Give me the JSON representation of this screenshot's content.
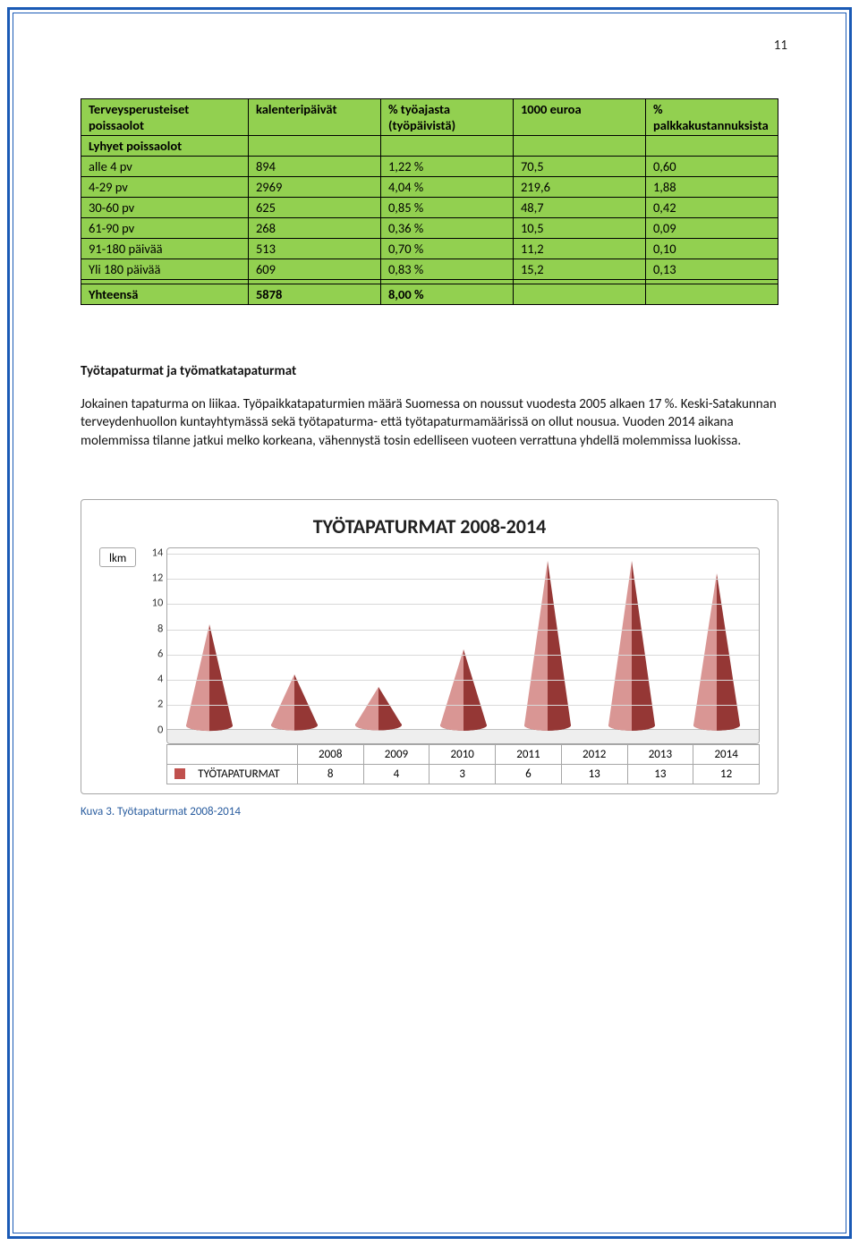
{
  "page_number": "11",
  "table": {
    "background_color": "#92d050",
    "border_color": "#000000",
    "headers": [
      "Terveysperusteiset poissaolot",
      "kalenteripäivät",
      "% työajasta (työpäivistä)",
      "1000 euroa",
      "% palkkakustannuksista"
    ],
    "rows": [
      [
        "Lyhyet poissaolot",
        "",
        "",
        "",
        ""
      ],
      [
        "alle 4 pv",
        "894",
        "1,22 %",
        "70,5",
        "0,60"
      ],
      [
        "4-29 pv",
        "2969",
        "4,04 %",
        "219,6",
        "1,88"
      ],
      [
        "30-60 pv",
        "625",
        "0,85 %",
        "48,7",
        "0,42"
      ],
      [
        "61-90 pv",
        "268",
        "0,36 %",
        "10,5",
        "0,09"
      ],
      [
        "91-180 päivää",
        "513",
        "0,70 %",
        "11,2",
        "0,10"
      ],
      [
        "Yli 180 päivää",
        "609",
        "0,83 %",
        "15,2",
        "0,13"
      ],
      [
        "",
        "",
        "",
        "",
        ""
      ],
      [
        "Yhteensä",
        "5878",
        "8,00 %",
        "",
        ""
      ]
    ],
    "bold_rows": [
      0,
      8
    ]
  },
  "section_heading": "Työtapaturmat ja työmatkatapaturmat",
  "body_text": "Jokainen tapaturma on liikaa. Työpaikkatapaturmien määrä Suomessa on noussut vuodesta 2005 alkaen 17 %. Keski-Satakunnan terveydenhuollon kuntayhtymässä sekä työtapaturma- että työtapaturmamäärissä on ollut nousua. Vuoden 2014 aikana molemmissa tilanne jatkui melko korkeana, vähennystä tosin edelliseen vuoteen verrattuna yhdellä molemmissa luokissa.",
  "chart": {
    "type": "bar",
    "title": "TYÖTAPATURMAT 2008-2014",
    "y_label": "lkm",
    "categories": [
      "2008",
      "2009",
      "2010",
      "2011",
      "2012",
      "2013",
      "2014"
    ],
    "values": [
      8,
      4,
      3,
      6,
      13,
      13,
      12
    ],
    "series_name": "TYÖTAPATURMAT",
    "series_color": "#c0504d",
    "series_light": "#d99694",
    "series_dark": "#953735",
    "ylim": [
      0,
      14
    ],
    "ytick_step": 2,
    "y_ticks": [
      0,
      2,
      4,
      6,
      8,
      10,
      12,
      14
    ],
    "background_color": "#ffffff",
    "grid_color": "#d9d9d9",
    "border_color": "#a6a6a6",
    "title_fontsize": 22,
    "tick_fontsize": 12.5
  },
  "caption": "Kuva 3. Työtapaturmat 2008-2014"
}
